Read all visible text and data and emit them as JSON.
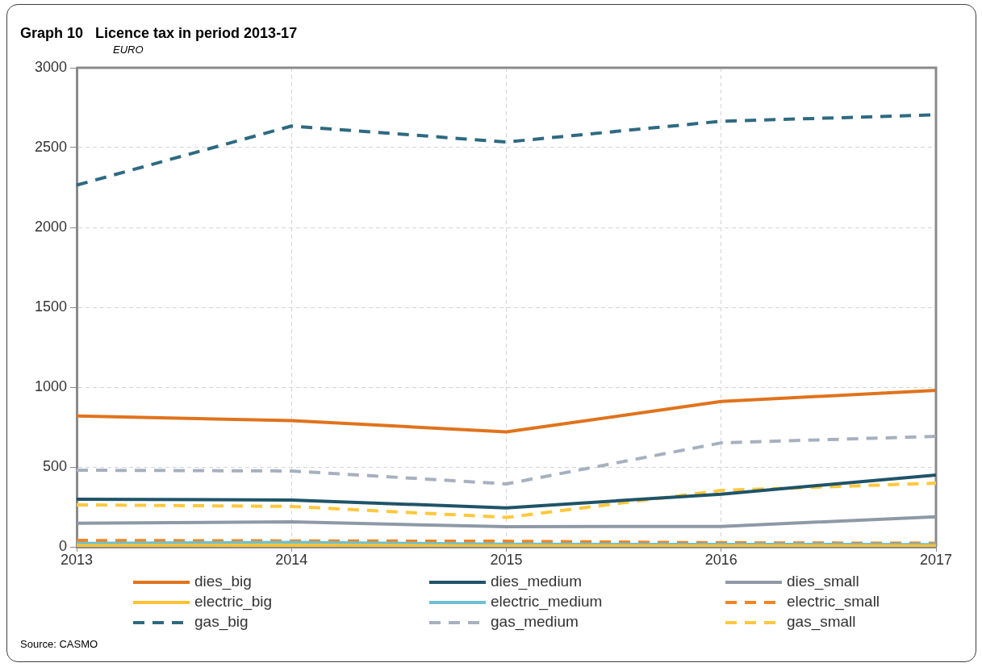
{
  "chart_data": {
    "type": "line",
    "title": "Graph 10   Licence tax in period 2013-17",
    "subtitle": "EURO",
    "categories": [
      "2013",
      "2014",
      "2015",
      "2016",
      "2017"
    ],
    "series": [
      {
        "name": "dies_big",
        "color": "#e0731c",
        "values": [
          820,
          790,
          720,
          910,
          980
        ]
      },
      {
        "name": "dies_medium",
        "color": "#1f5468",
        "values": [
          298,
          293,
          244,
          330,
          450
        ]
      },
      {
        "name": "dies_small",
        "color": "#8e99a6",
        "values": [
          148,
          156,
          126,
          128,
          188
        ]
      },
      {
        "name": "electric_big",
        "color": "#fcc233",
        "values": [
          8,
          10,
          5,
          5,
          5
        ]
      },
      {
        "name": "electric_medium",
        "color": "#6cc0d0",
        "values": [
          22,
          28,
          16,
          15,
          14
        ]
      },
      {
        "name": "electric_small",
        "color": "#f08526",
        "values": [
          40,
          37,
          35,
          25,
          22
        ],
        "line_style": "dashed"
      },
      {
        "name": "gas_big",
        "color": "#2e6a80",
        "values": [
          2265,
          2635,
          2535,
          2665,
          2705
        ],
        "line_style": "dashed"
      },
      {
        "name": "gas_medium",
        "color": "#a6b1bf",
        "values": [
          480,
          475,
          394,
          651,
          692
        ],
        "line_style": "dashed"
      },
      {
        "name": "gas_small",
        "color": "#ffc83d",
        "values": [
          263,
          253,
          184,
          353,
          399
        ],
        "line_style": "dashed"
      }
    ],
    "ylim": [
      0,
      3000
    ],
    "yticks": [
      0,
      500,
      1000,
      1500,
      2000,
      2500,
      3000
    ],
    "grid": true,
    "legend": "bottom",
    "marker": "none",
    "line_style": "solid",
    "annotations": [
      "Source: CASMO"
    ]
  }
}
